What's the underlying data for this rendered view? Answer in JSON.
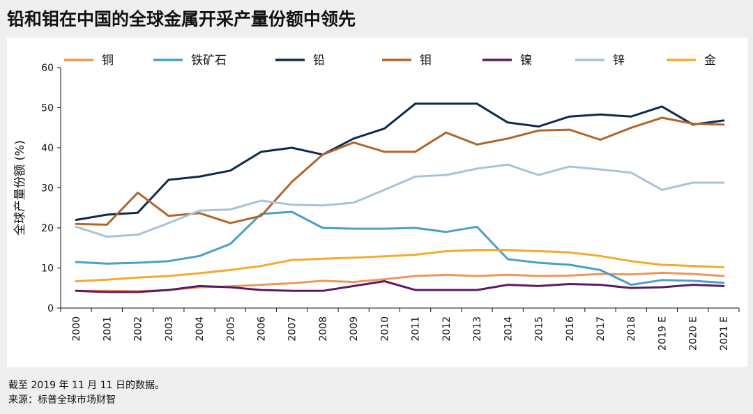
{
  "title": "铅和钼在中国的全球金属开采产量份额中领先",
  "footnotes": {
    "line1": "截至 2019 年 11 月 11 日的数据。",
    "line2": "来源：标普全球市场财智"
  },
  "chart_data": {
    "type": "line",
    "ylabel": "全球产量份额 (%)",
    "ylim": [
      0,
      60
    ],
    "yticks": [
      0,
      10,
      20,
      30,
      40,
      50,
      60
    ],
    "x": [
      "2000",
      "2001",
      "2002",
      "2003",
      "2004",
      "2005",
      "2006",
      "2007",
      "2008",
      "2009",
      "2010",
      "2011",
      "2012",
      "2013",
      "2014",
      "2015",
      "2016",
      "2017",
      "2018",
      "2019 E",
      "2020 E",
      "2021 E"
    ],
    "legend_position": "top",
    "grid": false,
    "series": [
      {
        "name": "铜",
        "color": "#f0955a",
        "values": [
          4.3,
          4.3,
          4.2,
          4.5,
          5.2,
          5.4,
          5.8,
          6.2,
          6.8,
          6.5,
          7.2,
          8.0,
          8.3,
          8.0,
          8.3,
          8.0,
          8.1,
          8.5,
          8.4,
          8.8,
          8.5,
          8.0
        ]
      },
      {
        "name": "铁矿石",
        "color": "#4a9fc8",
        "values": [
          11.5,
          11.1,
          11.3,
          11.7,
          13.0,
          16.0,
          23.5,
          24.0,
          20.0,
          19.8,
          19.8,
          20.0,
          19.0,
          20.3,
          12.2,
          11.3,
          10.8,
          9.5,
          5.8,
          7.0,
          6.8,
          6.3
        ]
      },
      {
        "name": "铅",
        "color": "#0d2a4e",
        "values": [
          22.0,
          23.3,
          23.8,
          32.0,
          32.8,
          34.3,
          39.0,
          40.0,
          38.3,
          42.3,
          44.8,
          51.0,
          51.0,
          51.0,
          46.3,
          45.3,
          47.8,
          48.3,
          47.8,
          50.3,
          45.8,
          46.8
        ]
      },
      {
        "name": "钼",
        "color": "#b0652a",
        "values": [
          21.0,
          20.8,
          28.8,
          23.0,
          23.7,
          21.2,
          23.0,
          31.5,
          38.3,
          41.3,
          39.0,
          39.0,
          43.8,
          40.8,
          42.3,
          44.3,
          44.5,
          42.0,
          45.0,
          47.5,
          46.0,
          45.8
        ]
      },
      {
        "name": "镍",
        "color": "#5e1a5e",
        "values": [
          4.3,
          4.0,
          4.0,
          4.5,
          5.5,
          5.2,
          4.5,
          4.3,
          4.3,
          5.5,
          6.7,
          4.5,
          4.5,
          4.5,
          5.8,
          5.5,
          6.0,
          5.8,
          5.0,
          5.2,
          5.8,
          5.5
        ]
      },
      {
        "name": "锌",
        "color": "#a8c2da",
        "values": [
          20.3,
          17.8,
          18.3,
          21.2,
          24.3,
          24.6,
          26.8,
          25.8,
          25.6,
          26.3,
          29.5,
          32.8,
          33.2,
          34.8,
          35.8,
          33.2,
          35.3,
          34.6,
          33.8,
          29.5,
          31.3,
          31.3
        ]
      },
      {
        "name": "金",
        "color": "#f5aa2c",
        "values": [
          6.7,
          7.1,
          7.6,
          8.0,
          8.7,
          9.5,
          10.5,
          12.0,
          12.3,
          12.6,
          12.9,
          13.3,
          14.2,
          14.5,
          14.5,
          14.2,
          13.9,
          13.0,
          11.7,
          10.8,
          10.5,
          10.2
        ]
      }
    ]
  }
}
